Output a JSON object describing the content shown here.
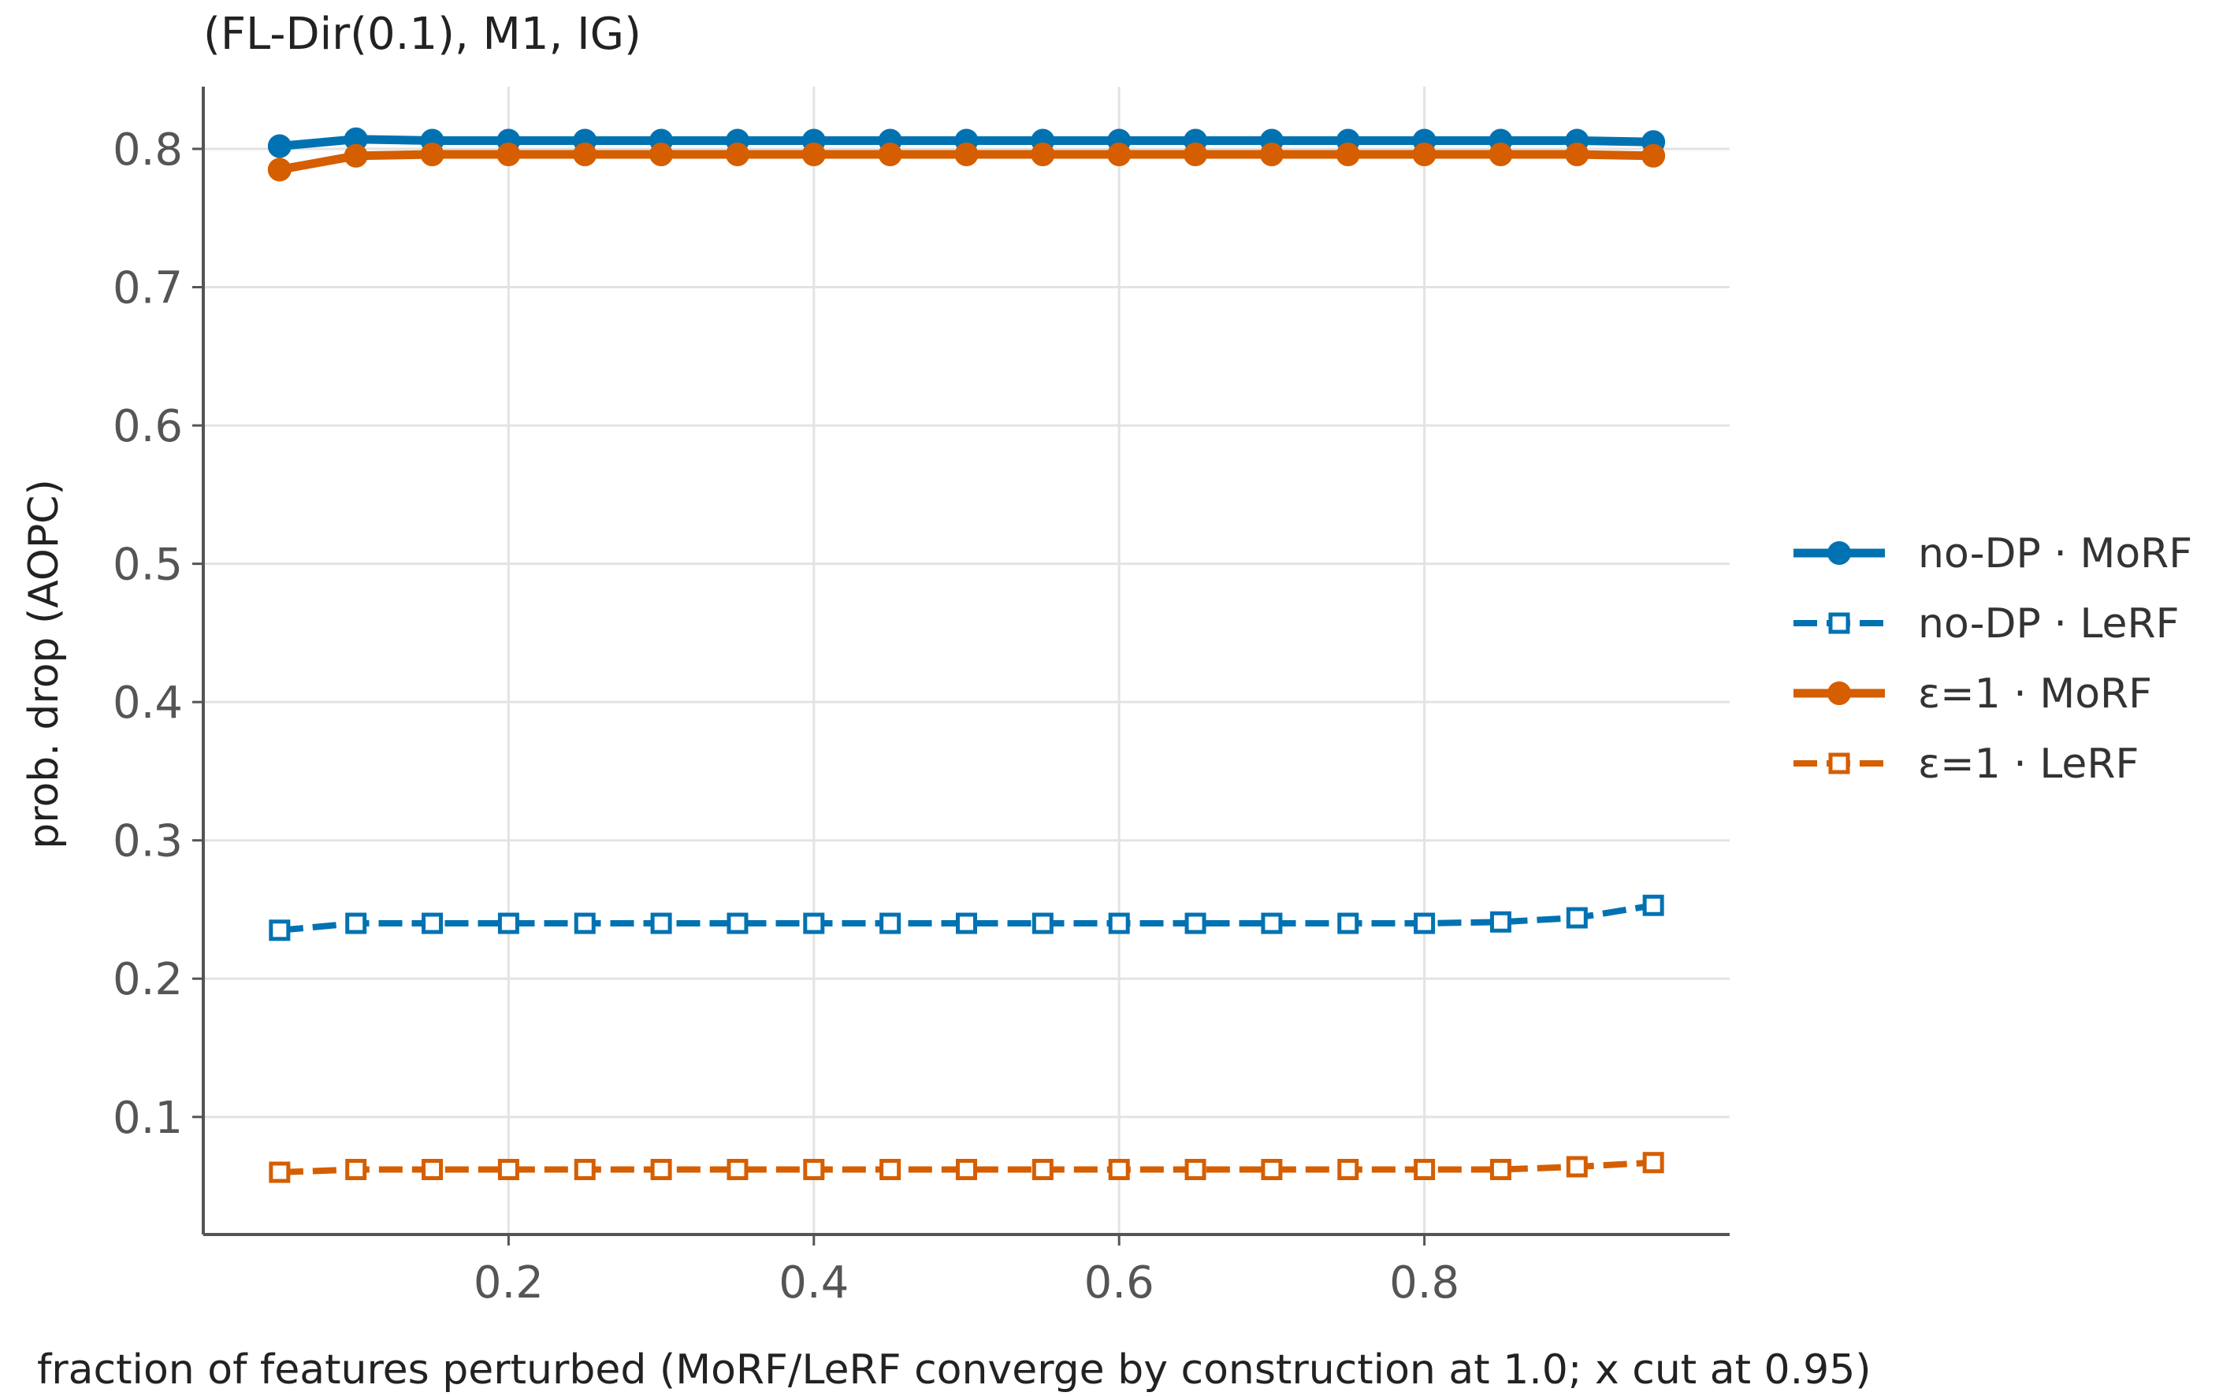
{
  "chart_data": {
    "type": "line",
    "title": "(FL-Dir(0.1), M1, IG)",
    "xlabel": "fraction of features perturbed (MoRF/LeRF converge by construction at 1.0; x cut at 0.95)",
    "ylabel": "prob. drop (AOPC)",
    "xlim": [
      0.0,
      1.0
    ],
    "ylim": [
      0.015,
      0.845
    ],
    "xticks": [
      0.2,
      0.4,
      0.6,
      0.8
    ],
    "xtick_labels": [
      "0.2",
      "0.4",
      "0.6",
      "0.8"
    ],
    "yticks": [
      0.1,
      0.2,
      0.3,
      0.4,
      0.5,
      0.6,
      0.7,
      0.8
    ],
    "ytick_labels": [
      "0.1",
      "0.2",
      "0.3",
      "0.4",
      "0.5",
      "0.6",
      "0.7",
      "0.8"
    ],
    "grid": true,
    "legend_position": "right, outside plot",
    "x": [
      0.05,
      0.1,
      0.15,
      0.2,
      0.25,
      0.3,
      0.35,
      0.4,
      0.45,
      0.5,
      0.55,
      0.6,
      0.65,
      0.7,
      0.75,
      0.8,
      0.85,
      0.9,
      0.95
    ],
    "series": [
      {
        "name": "no-DP · MoRF",
        "color": "#0072B2",
        "line_style": "solid",
        "marker": "filled-circle",
        "values": [
          0.802,
          0.807,
          0.806,
          0.806,
          0.806,
          0.806,
          0.806,
          0.806,
          0.806,
          0.806,
          0.806,
          0.806,
          0.806,
          0.806,
          0.806,
          0.806,
          0.806,
          0.806,
          0.805
        ]
      },
      {
        "name": "no-DP · LeRF",
        "color": "#0072B2",
        "line_style": "dashed",
        "marker": "open-square",
        "values": [
          0.235,
          0.24,
          0.24,
          0.24,
          0.24,
          0.24,
          0.24,
          0.24,
          0.24,
          0.24,
          0.24,
          0.24,
          0.24,
          0.24,
          0.24,
          0.24,
          0.241,
          0.244,
          0.253
        ]
      },
      {
        "name": "ε=1 · MoRF",
        "color": "#D55E00",
        "line_style": "solid",
        "marker": "filled-circle",
        "values": [
          0.785,
          0.795,
          0.796,
          0.796,
          0.796,
          0.796,
          0.796,
          0.796,
          0.796,
          0.796,
          0.796,
          0.796,
          0.796,
          0.796,
          0.796,
          0.796,
          0.796,
          0.796,
          0.795
        ]
      },
      {
        "name": "ε=1 · LeRF",
        "color": "#D55E00",
        "line_style": "dashed",
        "marker": "open-square",
        "values": [
          0.06,
          0.062,
          0.062,
          0.062,
          0.062,
          0.062,
          0.062,
          0.062,
          0.062,
          0.062,
          0.062,
          0.062,
          0.062,
          0.062,
          0.062,
          0.062,
          0.062,
          0.064,
          0.067
        ]
      }
    ]
  }
}
